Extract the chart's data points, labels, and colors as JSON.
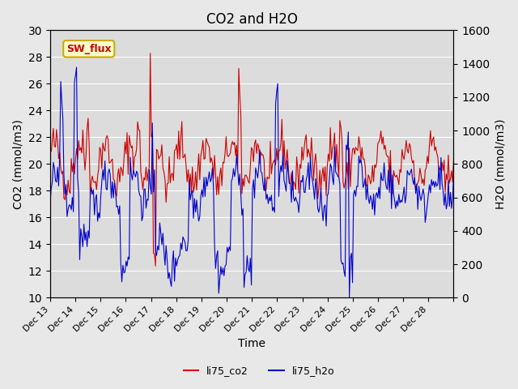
{
  "title": "CO2 and H2O",
  "xlabel": "Time",
  "ylabel_left": "CO2 (mmol/m3)",
  "ylabel_right": "H2O (mmol/m3)",
  "ylim_left": [
    10,
    30
  ],
  "ylim_right": [
    0,
    1600
  ],
  "color_co2": "#cc0000",
  "color_h2o": "#0000cc",
  "bg_color": "#e8e8e8",
  "plot_bg": "#dcdcdc",
  "annotation_text": "SW_flux",
  "annotation_bg": "#ffffcc",
  "annotation_border": "#ccaa00",
  "legend_co2": "li75_co2",
  "legend_h2o": "li75_h2o",
  "xtick_labels": [
    "Dec 13",
    "Dec 14",
    "Dec 15",
    "Dec 16",
    "Dec 17",
    "Dec 18",
    "Dec 19",
    "Dec 20",
    "Dec 21",
    "Dec 22",
    "Dec 23",
    "Dec 24",
    "Dec 25",
    "Dec 26",
    "Dec 27",
    "Dec 28"
  ],
  "yticks_left": [
    10,
    12,
    14,
    16,
    18,
    20,
    22,
    24,
    26,
    28,
    30
  ],
  "yticks_right": [
    0,
    200,
    400,
    600,
    800,
    1000,
    1200,
    1400,
    1600
  ]
}
